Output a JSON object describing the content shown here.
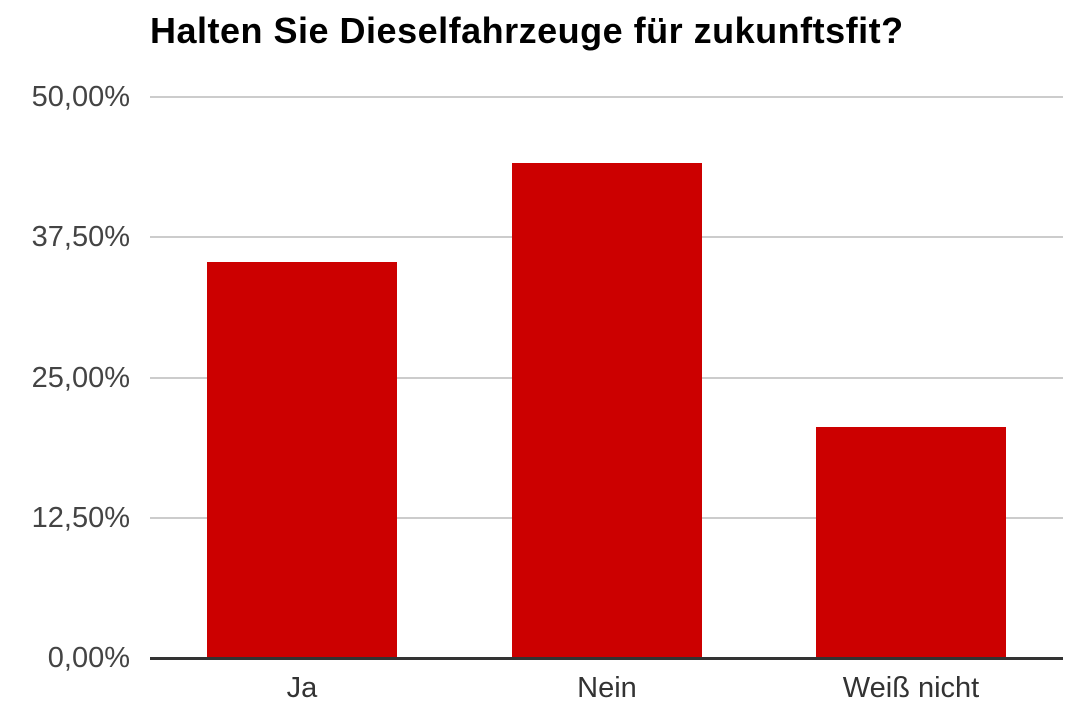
{
  "chart_data": {
    "type": "bar",
    "title": "Halten Sie Dieselfahrzeuge für zukunftsfit?",
    "categories": [
      "Ja",
      "Nein",
      "Weiß nicht"
    ],
    "values": [
      35.3,
      44.1,
      20.6
    ],
    "xlabel": "",
    "ylabel": "",
    "ylim": [
      0,
      50
    ],
    "ytick_values": [
      0,
      12.5,
      25,
      37.5,
      50
    ],
    "ytick_labels": [
      "0,00%",
      "12,50%",
      "25,00%",
      "37,50%",
      "50,00%"
    ],
    "grid": true,
    "legend_position": "none",
    "colors": {
      "bar": "#cc0000",
      "gridline": "#cccccc",
      "baseline": "#333333",
      "y_label": "#444444",
      "x_label": "#333333",
      "title": "#000000",
      "background": "#ffffff"
    }
  }
}
